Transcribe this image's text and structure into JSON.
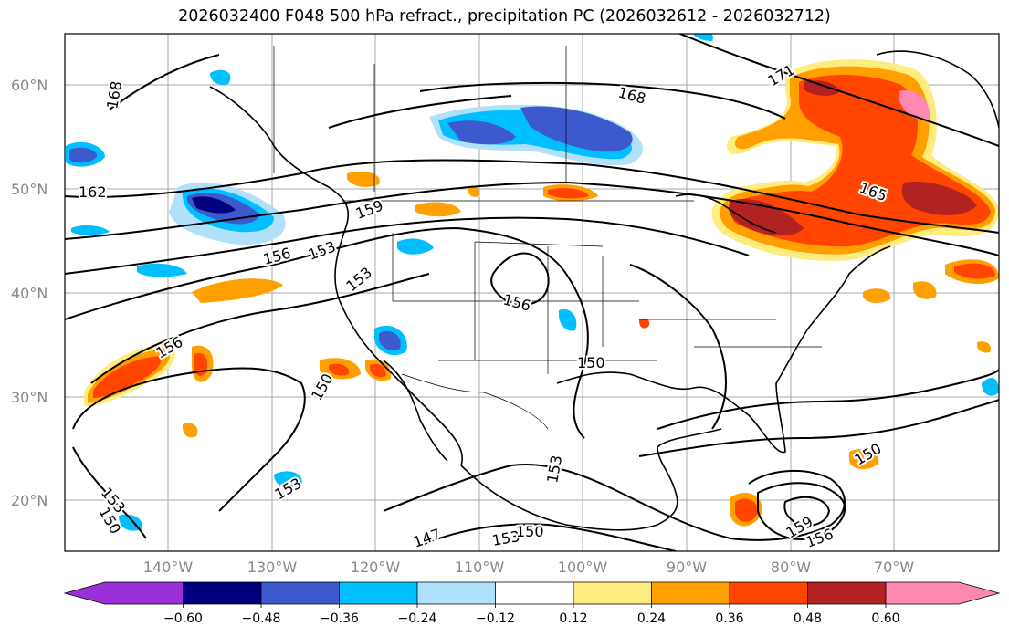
{
  "title": "2026032400 F048 500 hPa refract., precipitation PC (2026032612 - 2026032712)",
  "lat_labels": [
    "60°N",
    "50°N",
    "40°N",
    "30°N",
    "20°N"
  ],
  "lon_labels": [
    "140°W",
    "130°W",
    "120°W",
    "110°W",
    "100°W",
    "90°W",
    "80°W",
    "70°W"
  ],
  "contour_labels": [
    "168",
    "162",
    "159",
    "156",
    "153",
    "153",
    "156",
    "150",
    "150",
    "156",
    "153",
    "150",
    "153",
    "147",
    "153",
    "150",
    "159",
    "156",
    "150",
    "153",
    "165",
    "171",
    "168"
  ],
  "colorbar": {
    "ticks": [
      "−0.60",
      "−0.48",
      "−0.36",
      "−0.24",
      "−0.12",
      "0.12",
      "0.24",
      "0.36",
      "0.48",
      "0.60"
    ],
    "colors": [
      "#9b30d9",
      "#00007f",
      "#3c5acd",
      "#00bfff",
      "#b0e0fa",
      "#ffffff",
      "#ffec80",
      "#ff9f00",
      "#ff4500",
      "#b22222",
      "#ff88b0"
    ]
  }
}
